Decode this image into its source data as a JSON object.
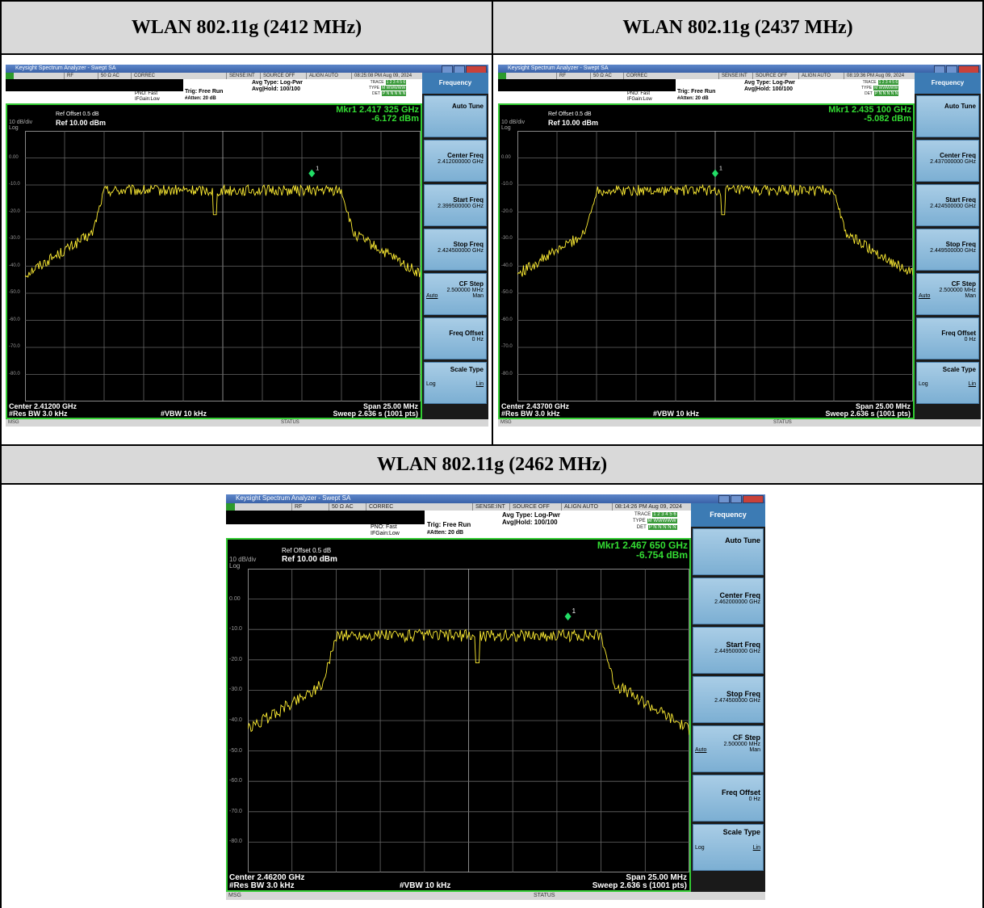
{
  "panels": [
    {
      "header": "WLAN 802.11g (2412 MHz)",
      "window_title": "Keysight Spectrum Analyzer - Swept SA",
      "status_strip": [
        "RF",
        "50 Ω  AC",
        "CORREC",
        "SENSE:INT",
        "SOURCE OFF",
        "ALIGN AUTO",
        "08:25:08 PM Aug 09, 2024"
      ],
      "pno": "PNO: Fast",
      "ifgain": "IFGain:Low",
      "trig": "Trig: Free Run",
      "atten": "#Atten: 20 dB",
      "avg_type": "Avg Type: Log-Pwr",
      "avg_hold": "Avg|Hold: 100/100",
      "trace_labels": [
        "TRACE",
        "TYPE",
        "DET"
      ],
      "trace_values": [
        "1 2 3 4 5 6",
        "M WWWWW",
        "P N N N N N"
      ],
      "ref_offset": "Ref Offset 0.5 dB",
      "ref_level": "Ref 10.00 dBm",
      "scale": "10 dB/div",
      "log": "Log",
      "marker_freq": "Mkr1 2.417 325 GHz",
      "marker_level": "-6.172 dBm",
      "center": "Center 2.41200 GHz",
      "span": "Span 25.00 MHz",
      "rbw": "#Res BW 3.0 kHz",
      "vbw": "#VBW 10 kHz",
      "sweep": "Sweep  2.636 s (1001 pts)",
      "msg": "MSG",
      "status": "STATUS",
      "menu": {
        "title": "Frequency",
        "auto_tune": "Auto Tune",
        "center_freq": "Center Freq",
        "center_freq_val": "2.412000000 GHz",
        "start_freq": "Start Freq",
        "start_freq_val": "2.399500000 GHz",
        "stop_freq": "Stop Freq",
        "stop_freq_val": "2.424500000 GHz",
        "cf_step": "CF Step",
        "cf_step_val": "2.500000 MHz",
        "auto": "Auto",
        "man": "Man",
        "freq_offset": "Freq Offset",
        "freq_offset_val": "0 Hz",
        "scale_type": "Scale Type",
        "log": "Log",
        "lin": "Lin"
      },
      "trace_data": {
        "marker_index": 7,
        "dip_index": 3
      }
    },
    {
      "header": "WLAN 802.11g (2437 MHz)",
      "window_title": "Keysight Spectrum Analyzer - Swept SA",
      "status_strip": [
        "RF",
        "50 Ω  AC",
        "CORREC",
        "SENSE:INT",
        "SOURCE OFF",
        "ALIGN AUTO",
        "08:19:36 PM Aug 09, 2024"
      ],
      "pno": "PNO: Fast",
      "ifgain": "IFGain:Low",
      "trig": "Trig: Free Run",
      "atten": "#Atten: 20 dB",
      "avg_type": "Avg Type: Log-Pwr",
      "avg_hold": "Avg|Hold: 100/100",
      "trace_labels": [
        "TRACE",
        "TYPE",
        "DET"
      ],
      "trace_values": [
        "1 2 3 4 5 6",
        "M WWWWW",
        "P N N N N N"
      ],
      "ref_offset": "Ref Offset 0.5 dB",
      "ref_level": "Ref 10.00 dBm",
      "scale": "10 dB/div",
      "log": "Log",
      "marker_freq": "Mkr1 2.435 100 GHz",
      "marker_level": "-5.082 dBm",
      "center": "Center 2.43700 GHz",
      "span": "Span 25.00 MHz",
      "rbw": "#Res BW 3.0 kHz",
      "vbw": "#VBW 10 kHz",
      "sweep": "Sweep  2.636 s (1001 pts)",
      "msg": "MSG",
      "status": "STATUS",
      "menu": {
        "title": "Frequency",
        "auto_tune": "Auto Tune",
        "center_freq": "Center Freq",
        "center_freq_val": "2.437000000 GHz",
        "start_freq": "Start Freq",
        "start_freq_val": "2.424500000 GHz",
        "stop_freq": "Stop Freq",
        "stop_freq_val": "2.449500000 GHz",
        "cf_step": "CF Step",
        "cf_step_val": "2.500000 MHz",
        "auto": "Auto",
        "man": "Man",
        "freq_offset": "Freq Offset",
        "freq_offset_val": "0 Hz",
        "scale_type": "Scale Type",
        "log": "Log",
        "lin": "Lin"
      },
      "trace_data": {
        "marker_index": 4,
        "dip_index": 5
      }
    },
    {
      "header": "WLAN 802.11g (2462 MHz)",
      "window_title": "Keysight Spectrum Analyzer - Swept SA",
      "status_strip": [
        "RF",
        "50 Ω  AC",
        "CORREC",
        "SENSE:INT",
        "SOURCE OFF",
        "ALIGN AUTO",
        "08:14:26 PM Aug 09, 2024"
      ],
      "pno": "PNO: Fast",
      "ifgain": "IFGain:Low",
      "trig": "Trig: Free Run",
      "atten": "#Atten: 20 dB",
      "avg_type": "Avg Type: Log-Pwr",
      "avg_hold": "Avg|Hold: 100/100",
      "trace_labels": [
        "TRACE",
        "TYPE",
        "DET"
      ],
      "trace_values": [
        "1 2 3 4 5 6",
        "M WWWWW",
        "P N N N N N"
      ],
      "ref_offset": "Ref Offset 0.5 dB",
      "ref_level": "Ref 10.00 dBm",
      "scale": "10 dB/div",
      "log": "Log",
      "marker_freq": "Mkr1 2.467 650 GHz",
      "marker_level": "-6.754 dBm",
      "center": "Center 2.46200 GHz",
      "span": "Span 25.00 MHz",
      "rbw": "#Res BW 3.0 kHz",
      "vbw": "#VBW 10 kHz",
      "sweep": "Sweep  2.636 s (1001 pts)",
      "msg": "MSG",
      "status": "STATUS",
      "menu": {
        "title": "Frequency",
        "auto_tune": "Auto Tune",
        "center_freq": "Center Freq",
        "center_freq_val": "2.462000000 GHz",
        "start_freq": "Start Freq",
        "start_freq_val": "2.449500000 GHz",
        "stop_freq": "Stop Freq",
        "stop_freq_val": "2.474500000 GHz",
        "cf_step": "CF Step",
        "cf_step_val": "2.500000 MHz",
        "auto": "Auto",
        "man": "Man",
        "freq_offset": "Freq Offset",
        "freq_offset_val": "0 Hz",
        "scale_type": "Scale Type",
        "log": "Log",
        "lin": "Lin"
      },
      "trace_data": {
        "marker_index": 7,
        "dip_index": 5
      }
    }
  ],
  "y_ticks": [
    "0.00",
    "-10.0",
    "-20.0",
    "-30.0",
    "-40.0",
    "-50.0",
    "-60.0",
    "-70.0",
    "-80.0"
  ],
  "colors": {
    "trace": "#ffee33",
    "marker": "#22dd66",
    "frame": "#33cc33",
    "menu_header": "#3c7bb4"
  }
}
